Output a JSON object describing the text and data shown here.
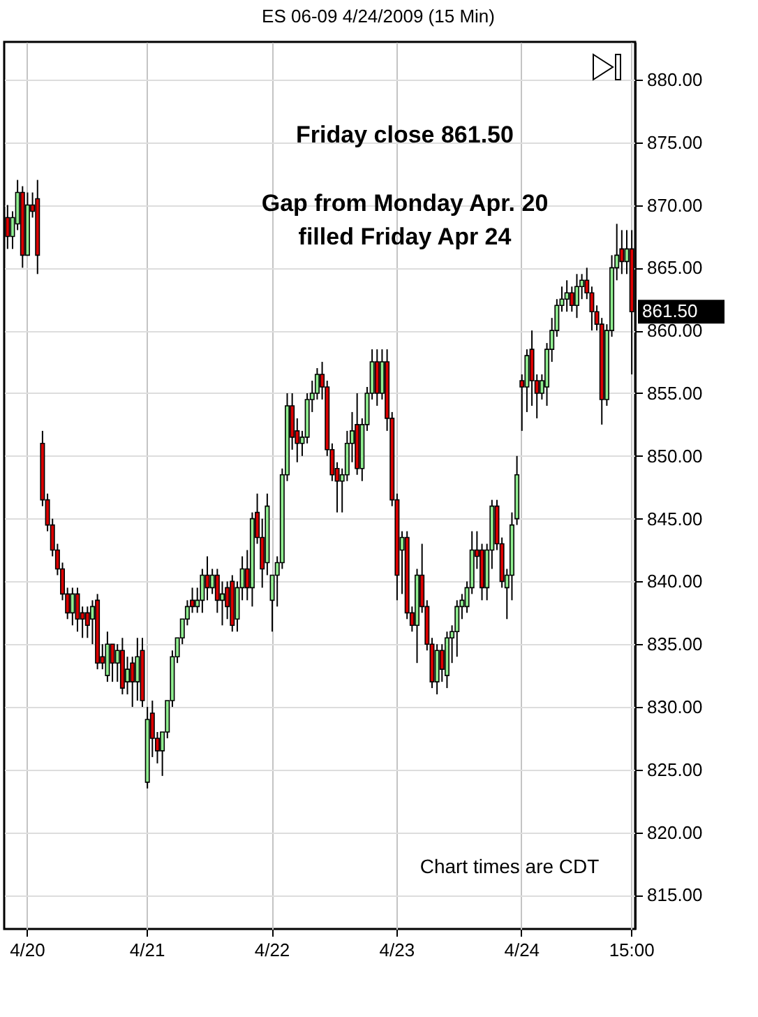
{
  "chart_data": {
    "type": "candlestick",
    "title": "ES 06-09  4/24/2009 (15 Min)",
    "categories": [
      null,
      null,
      null,
      null,
      "4/20",
      null,
      null,
      null,
      null,
      null,
      null,
      null,
      null,
      null,
      null,
      null,
      null,
      null,
      null,
      null,
      null,
      null,
      null,
      null,
      null,
      null,
      null,
      null,
      "4/21",
      null,
      null,
      null,
      null,
      null,
      null,
      null,
      null,
      null,
      null,
      null,
      null,
      null,
      null,
      null,
      null,
      null,
      null,
      null,
      null,
      null,
      null,
      null,
      null,
      "4/22",
      null,
      null,
      null,
      null,
      null,
      null,
      null,
      null,
      null,
      null,
      null,
      null,
      null,
      null,
      null,
      null,
      null,
      null,
      null,
      null,
      null,
      null,
      null,
      null,
      "4/23",
      null,
      null,
      null,
      null,
      null,
      null,
      null,
      null,
      null,
      null,
      null,
      null,
      null,
      null,
      null,
      null,
      null,
      null,
      null,
      null,
      null,
      null,
      null,
      null,
      "4/24",
      null,
      null,
      null,
      null,
      null,
      null,
      null,
      null,
      null,
      null,
      null,
      null,
      null,
      null,
      null,
      null,
      null,
      null,
      null,
      null,
      null,
      "15:00"
    ],
    "ohlc": [
      [
        869,
        870,
        866.5,
        867.5
      ],
      [
        867.5,
        869.5,
        866.5,
        869
      ],
      [
        868.5,
        872,
        868,
        871
      ],
      [
        871,
        871.5,
        865,
        866
      ],
      [
        866,
        871,
        866,
        870
      ],
      [
        870,
        871,
        869,
        869.5
      ],
      [
        870.5,
        872,
        864.5,
        866
      ],
      [
        851,
        852,
        846,
        846.5
      ],
      [
        846.5,
        847,
        844,
        844.5
      ],
      [
        844.5,
        845,
        842,
        842.5
      ],
      [
        842.5,
        843,
        840.5,
        841
      ],
      [
        841,
        841.5,
        838.5,
        839
      ],
      [
        839,
        839.5,
        837,
        837.5
      ],
      [
        837.5,
        839.5,
        836.5,
        839
      ],
      [
        839,
        839.5,
        836,
        837
      ],
      [
        837.5,
        838,
        835.5,
        837
      ],
      [
        837.5,
        838,
        835.5,
        836.5
      ],
      [
        837,
        838.5,
        835,
        838
      ],
      [
        838.5,
        839,
        833,
        833.5
      ],
      [
        834,
        835,
        833,
        833.5
      ],
      [
        832.5,
        836,
        832,
        835
      ],
      [
        835,
        835,
        832,
        833.5
      ],
      [
        833.5,
        835,
        832,
        834.5
      ],
      [
        834.5,
        835.5,
        831,
        831.5
      ],
      [
        832,
        834,
        831,
        833
      ],
      [
        833.5,
        834,
        830,
        832
      ],
      [
        832,
        835.5,
        830.5,
        834
      ],
      [
        834.5,
        835.5,
        830,
        830.5
      ],
      [
        824,
        830,
        823.5,
        829
      ],
      [
        829.5,
        830.5,
        826,
        827.5
      ],
      [
        827.5,
        828,
        825.5,
        826.5
      ],
      [
        826.5,
        828,
        824.5,
        828
      ],
      [
        828,
        830.5,
        827.5,
        830.5
      ],
      [
        830.5,
        834.5,
        830,
        834
      ],
      [
        834,
        835.5,
        833.5,
        835.5
      ],
      [
        835.5,
        837,
        835,
        837
      ],
      [
        837,
        838.5,
        836.5,
        838
      ],
      [
        838.5,
        839.5,
        837.5,
        838
      ],
      [
        838,
        839.5,
        837.5,
        838.5
      ],
      [
        838.5,
        841,
        837.5,
        840.5
      ],
      [
        840.5,
        842,
        838.5,
        839.5
      ],
      [
        839.5,
        841,
        839,
        840.5
      ],
      [
        840.5,
        841,
        837.5,
        838.5
      ],
      [
        838.5,
        840,
        836.5,
        839
      ],
      [
        839.5,
        840,
        837,
        838
      ],
      [
        840,
        840.5,
        836,
        836.5
      ],
      [
        837,
        840,
        836,
        839.5
      ],
      [
        839.5,
        842,
        838.5,
        841
      ],
      [
        841,
        842.5,
        838.5,
        839.5
      ],
      [
        839.5,
        845.5,
        838,
        845
      ],
      [
        845.5,
        847,
        843,
        843.5
      ],
      [
        843.5,
        845,
        839.5,
        841
      ],
      [
        841.5,
        847,
        840.5,
        846
      ],
      [
        838.5,
        840.5,
        836,
        840.5
      ],
      [
        840.5,
        842,
        838,
        841.5
      ],
      [
        841.5,
        849,
        841,
        848.5
      ],
      [
        848.5,
        855,
        848,
        854
      ],
      [
        854,
        855,
        850.5,
        851.5
      ],
      [
        852,
        853,
        849.5,
        851
      ],
      [
        851,
        852,
        850,
        851.5
      ],
      [
        851.5,
        855,
        851,
        854.5
      ],
      [
        854.5,
        856,
        853.5,
        855
      ],
      [
        855,
        857,
        854.5,
        856.5
      ],
      [
        856.5,
        857.5,
        854.5,
        855.5
      ],
      [
        855.5,
        856,
        850,
        850.5
      ],
      [
        850.5,
        851,
        848,
        848.5
      ],
      [
        849,
        849.5,
        845.5,
        848
      ],
      [
        848,
        849,
        845.5,
        848.5
      ],
      [
        848.5,
        852,
        848,
        851
      ],
      [
        851,
        853.5,
        849.5,
        852
      ],
      [
        852.5,
        855,
        848.5,
        849
      ],
      [
        849,
        853,
        848,
        852.5
      ],
      [
        852.5,
        855.5,
        852,
        855
      ],
      [
        855,
        858.5,
        854.5,
        857.5
      ],
      [
        857.5,
        858.5,
        854,
        855
      ],
      [
        855,
        858.5,
        854.5,
        857.5
      ],
      [
        857.5,
        858.5,
        852,
        853
      ],
      [
        853,
        853.5,
        846,
        846.5
      ],
      [
        846.5,
        847,
        838.5,
        840.5
      ],
      [
        842.5,
        844,
        839,
        843.5
      ],
      [
        843.5,
        844,
        837,
        837.5
      ],
      [
        837.5,
        838,
        836,
        836.5
      ],
      [
        836.5,
        841,
        833.5,
        840.5
      ],
      [
        840.5,
        843,
        837.5,
        838
      ],
      [
        838,
        838.5,
        834.5,
        835
      ],
      [
        835,
        835.5,
        831.5,
        832
      ],
      [
        832,
        835,
        831,
        834.5
      ],
      [
        834.5,
        835,
        832,
        833
      ],
      [
        832.5,
        836,
        831.5,
        835.5
      ],
      [
        835.5,
        836.5,
        833.5,
        836
      ],
      [
        836,
        838.5,
        834,
        838
      ],
      [
        838,
        839,
        837,
        838.5
      ],
      [
        838,
        840,
        837.5,
        839.5
      ],
      [
        839.5,
        844,
        839,
        842.5
      ],
      [
        842.5,
        844,
        841,
        842
      ],
      [
        842.5,
        843,
        838.5,
        839.5
      ],
      [
        839.5,
        843,
        838.5,
        842.5
      ],
      [
        842.5,
        846.5,
        841,
        846
      ],
      [
        846,
        846.5,
        842.5,
        843
      ],
      [
        843,
        843.5,
        839.5,
        840
      ],
      [
        839.5,
        841,
        837,
        840.5
      ],
      [
        840.5,
        845.5,
        838.5,
        844.5
      ],
      [
        845,
        850,
        844.5,
        848.5
      ],
      [
        856,
        856.5,
        852,
        855.5
      ],
      [
        855.5,
        858.5,
        853.5,
        858
      ],
      [
        858.5,
        860,
        854,
        856
      ],
      [
        856,
        856.5,
        853,
        855
      ],
      [
        855,
        856.5,
        854.5,
        856
      ],
      [
        855.5,
        859,
        854,
        858.5
      ],
      [
        858.5,
        861,
        857.5,
        860
      ],
      [
        860,
        862.5,
        859.5,
        862
      ],
      [
        862,
        863.5,
        861.5,
        862.5
      ],
      [
        862.5,
        864,
        861.5,
        863
      ],
      [
        863,
        863.5,
        861.5,
        862
      ],
      [
        862,
        864.5,
        861,
        863.5
      ],
      [
        863.5,
        864.5,
        862.5,
        864
      ],
      [
        864,
        865,
        862.5,
        863
      ],
      [
        863,
        863.5,
        860,
        861.5
      ],
      [
        861.5,
        862,
        860,
        860.5
      ],
      [
        860.5,
        861,
        852.5,
        854.5
      ],
      [
        854.5,
        860.5,
        854,
        860
      ],
      [
        860,
        866,
        859.5,
        865
      ],
      [
        865,
        868.5,
        864,
        866
      ],
      [
        866.5,
        868,
        864.5,
        865.5
      ],
      [
        865.5,
        868,
        864.5,
        866.5
      ],
      [
        866.5,
        868,
        856.5,
        861.5
      ]
    ],
    "ylim": [
      812.3,
      883
    ],
    "yticks": [
      {
        "value": 815,
        "label": "815.00"
      },
      {
        "value": 820,
        "label": "820.00"
      },
      {
        "value": 825,
        "label": "825.00"
      },
      {
        "value": 830,
        "label": "830.00"
      },
      {
        "value": 835,
        "label": "835.00"
      },
      {
        "value": 840,
        "label": "840.00"
      },
      {
        "value": 845,
        "label": "845.00"
      },
      {
        "value": 850,
        "label": "850.00"
      },
      {
        "value": 855,
        "label": "855.00"
      },
      {
        "value": 860,
        "label": "860.00"
      },
      {
        "value": 865,
        "label": "865.00"
      },
      {
        "value": 870,
        "label": "870.00"
      },
      {
        "value": 875,
        "label": "875.00"
      },
      {
        "value": 880,
        "label": "880.00"
      }
    ],
    "grid": true,
    "annotations": [
      "Friday close 861.50",
      "Gap from Monday Apr. 20\nfilled Friday Apr 24",
      "Chart times are CDT",
      "861.50"
    ]
  }
}
